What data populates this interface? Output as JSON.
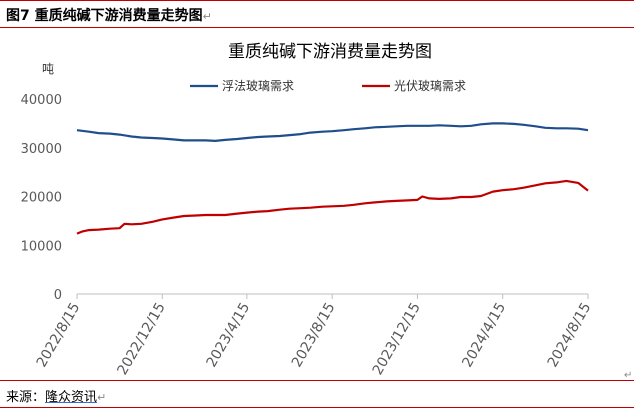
{
  "figure_caption": "图7  重质纯碱下游消费量走势图",
  "source_prefix": "来源：",
  "source_name": "隆众资讯",
  "paragraph_mark": "↵",
  "colors": {
    "float_glass": "#1f4e8c",
    "pv_glass": "#c00000",
    "frame": "#c00000",
    "axis": "#bfbfbf",
    "tick_text": "#595959"
  },
  "chart_data": {
    "type": "line",
    "title": "重质纯碱下游消费量走势图",
    "ylabel": "吨",
    "xlabel": "",
    "ylim": [
      0,
      40000
    ],
    "y_ticks": [
      "40000",
      "30000",
      "20000",
      "10000",
      "0"
    ],
    "x_tick_labels": [
      "2022/8/15",
      "2022/12/15",
      "2023/4/15",
      "2023/8/15",
      "2023/12/15",
      "2024/4/15",
      "2024/8/15"
    ],
    "x_range": [
      "2022-08-15",
      "2024-08-15"
    ],
    "legend_position": "top",
    "grid": false,
    "series": [
      {
        "name": "浮法玻璃需求",
        "color": "#1f4e8c",
        "points": [
          [
            "2022-08-15",
            33600
          ],
          [
            "2022-09-01",
            33300
          ],
          [
            "2022-09-15",
            33000
          ],
          [
            "2022-10-01",
            32900
          ],
          [
            "2022-10-15",
            32700
          ],
          [
            "2022-11-01",
            32300
          ],
          [
            "2022-11-15",
            32100
          ],
          [
            "2022-12-01",
            32000
          ],
          [
            "2022-12-15",
            31900
          ],
          [
            "2023-01-01",
            31700
          ],
          [
            "2023-01-15",
            31500
          ],
          [
            "2023-02-01",
            31500
          ],
          [
            "2023-02-15",
            31500
          ],
          [
            "2023-03-01",
            31400
          ],
          [
            "2023-03-15",
            31600
          ],
          [
            "2023-04-01",
            31800
          ],
          [
            "2023-04-15",
            32000
          ],
          [
            "2023-05-01",
            32200
          ],
          [
            "2023-05-15",
            32300
          ],
          [
            "2023-06-01",
            32400
          ],
          [
            "2023-06-15",
            32600
          ],
          [
            "2023-07-01",
            32800
          ],
          [
            "2023-07-15",
            33100
          ],
          [
            "2023-08-01",
            33300
          ],
          [
            "2023-08-15",
            33400
          ],
          [
            "2023-09-01",
            33600
          ],
          [
            "2023-09-15",
            33800
          ],
          [
            "2023-10-01",
            34000
          ],
          [
            "2023-10-15",
            34200
          ],
          [
            "2023-11-01",
            34300
          ],
          [
            "2023-11-15",
            34400
          ],
          [
            "2023-12-01",
            34500
          ],
          [
            "2023-12-15",
            34500
          ],
          [
            "2024-01-01",
            34500
          ],
          [
            "2024-01-15",
            34600
          ],
          [
            "2024-02-01",
            34500
          ],
          [
            "2024-02-15",
            34400
          ],
          [
            "2024-03-01",
            34500
          ],
          [
            "2024-03-15",
            34800
          ],
          [
            "2024-04-01",
            35000
          ],
          [
            "2024-04-15",
            35000
          ],
          [
            "2024-05-01",
            34900
          ],
          [
            "2024-05-15",
            34700
          ],
          [
            "2024-06-01",
            34400
          ],
          [
            "2024-06-15",
            34100
          ],
          [
            "2024-07-01",
            34000
          ],
          [
            "2024-07-15",
            34000
          ],
          [
            "2024-08-01",
            33900
          ],
          [
            "2024-08-15",
            33600
          ]
        ]
      },
      {
        "name": "光伏玻璃需求",
        "color": "#c00000",
        "points": [
          [
            "2022-08-15",
            12400
          ],
          [
            "2022-08-22",
            12800
          ],
          [
            "2022-09-01",
            13100
          ],
          [
            "2022-09-15",
            13200
          ],
          [
            "2022-10-01",
            13400
          ],
          [
            "2022-10-15",
            13500
          ],
          [
            "2022-10-22",
            14400
          ],
          [
            "2022-11-01",
            14300
          ],
          [
            "2022-11-15",
            14400
          ],
          [
            "2022-12-01",
            14800
          ],
          [
            "2022-12-15",
            15300
          ],
          [
            "2023-01-01",
            15700
          ],
          [
            "2023-01-15",
            16000
          ],
          [
            "2023-02-01",
            16100
          ],
          [
            "2023-02-15",
            16200
          ],
          [
            "2023-03-01",
            16200
          ],
          [
            "2023-03-15",
            16200
          ],
          [
            "2023-04-01",
            16500
          ],
          [
            "2023-04-15",
            16700
          ],
          [
            "2023-05-01",
            16900
          ],
          [
            "2023-05-15",
            17000
          ],
          [
            "2023-06-01",
            17300
          ],
          [
            "2023-06-15",
            17500
          ],
          [
            "2023-07-01",
            17600
          ],
          [
            "2023-07-15",
            17700
          ],
          [
            "2023-08-01",
            17900
          ],
          [
            "2023-08-15",
            18000
          ],
          [
            "2023-09-01",
            18100
          ],
          [
            "2023-09-15",
            18300
          ],
          [
            "2023-10-01",
            18600
          ],
          [
            "2023-10-15",
            18800
          ],
          [
            "2023-11-01",
            19000
          ],
          [
            "2023-11-15",
            19100
          ],
          [
            "2023-12-01",
            19200
          ],
          [
            "2023-12-15",
            19300
          ],
          [
            "2023-12-22",
            20000
          ],
          [
            "2024-01-01",
            19600
          ],
          [
            "2024-01-15",
            19500
          ],
          [
            "2024-02-01",
            19600
          ],
          [
            "2024-02-15",
            19900
          ],
          [
            "2024-03-01",
            19900
          ],
          [
            "2024-03-15",
            20100
          ],
          [
            "2024-04-01",
            21000
          ],
          [
            "2024-04-15",
            21300
          ],
          [
            "2024-05-01",
            21500
          ],
          [
            "2024-05-15",
            21800
          ],
          [
            "2024-06-01",
            22300
          ],
          [
            "2024-06-15",
            22700
          ],
          [
            "2024-07-01",
            22900
          ],
          [
            "2024-07-15",
            23200
          ],
          [
            "2024-08-01",
            22800
          ],
          [
            "2024-08-15",
            21200
          ]
        ]
      }
    ]
  }
}
